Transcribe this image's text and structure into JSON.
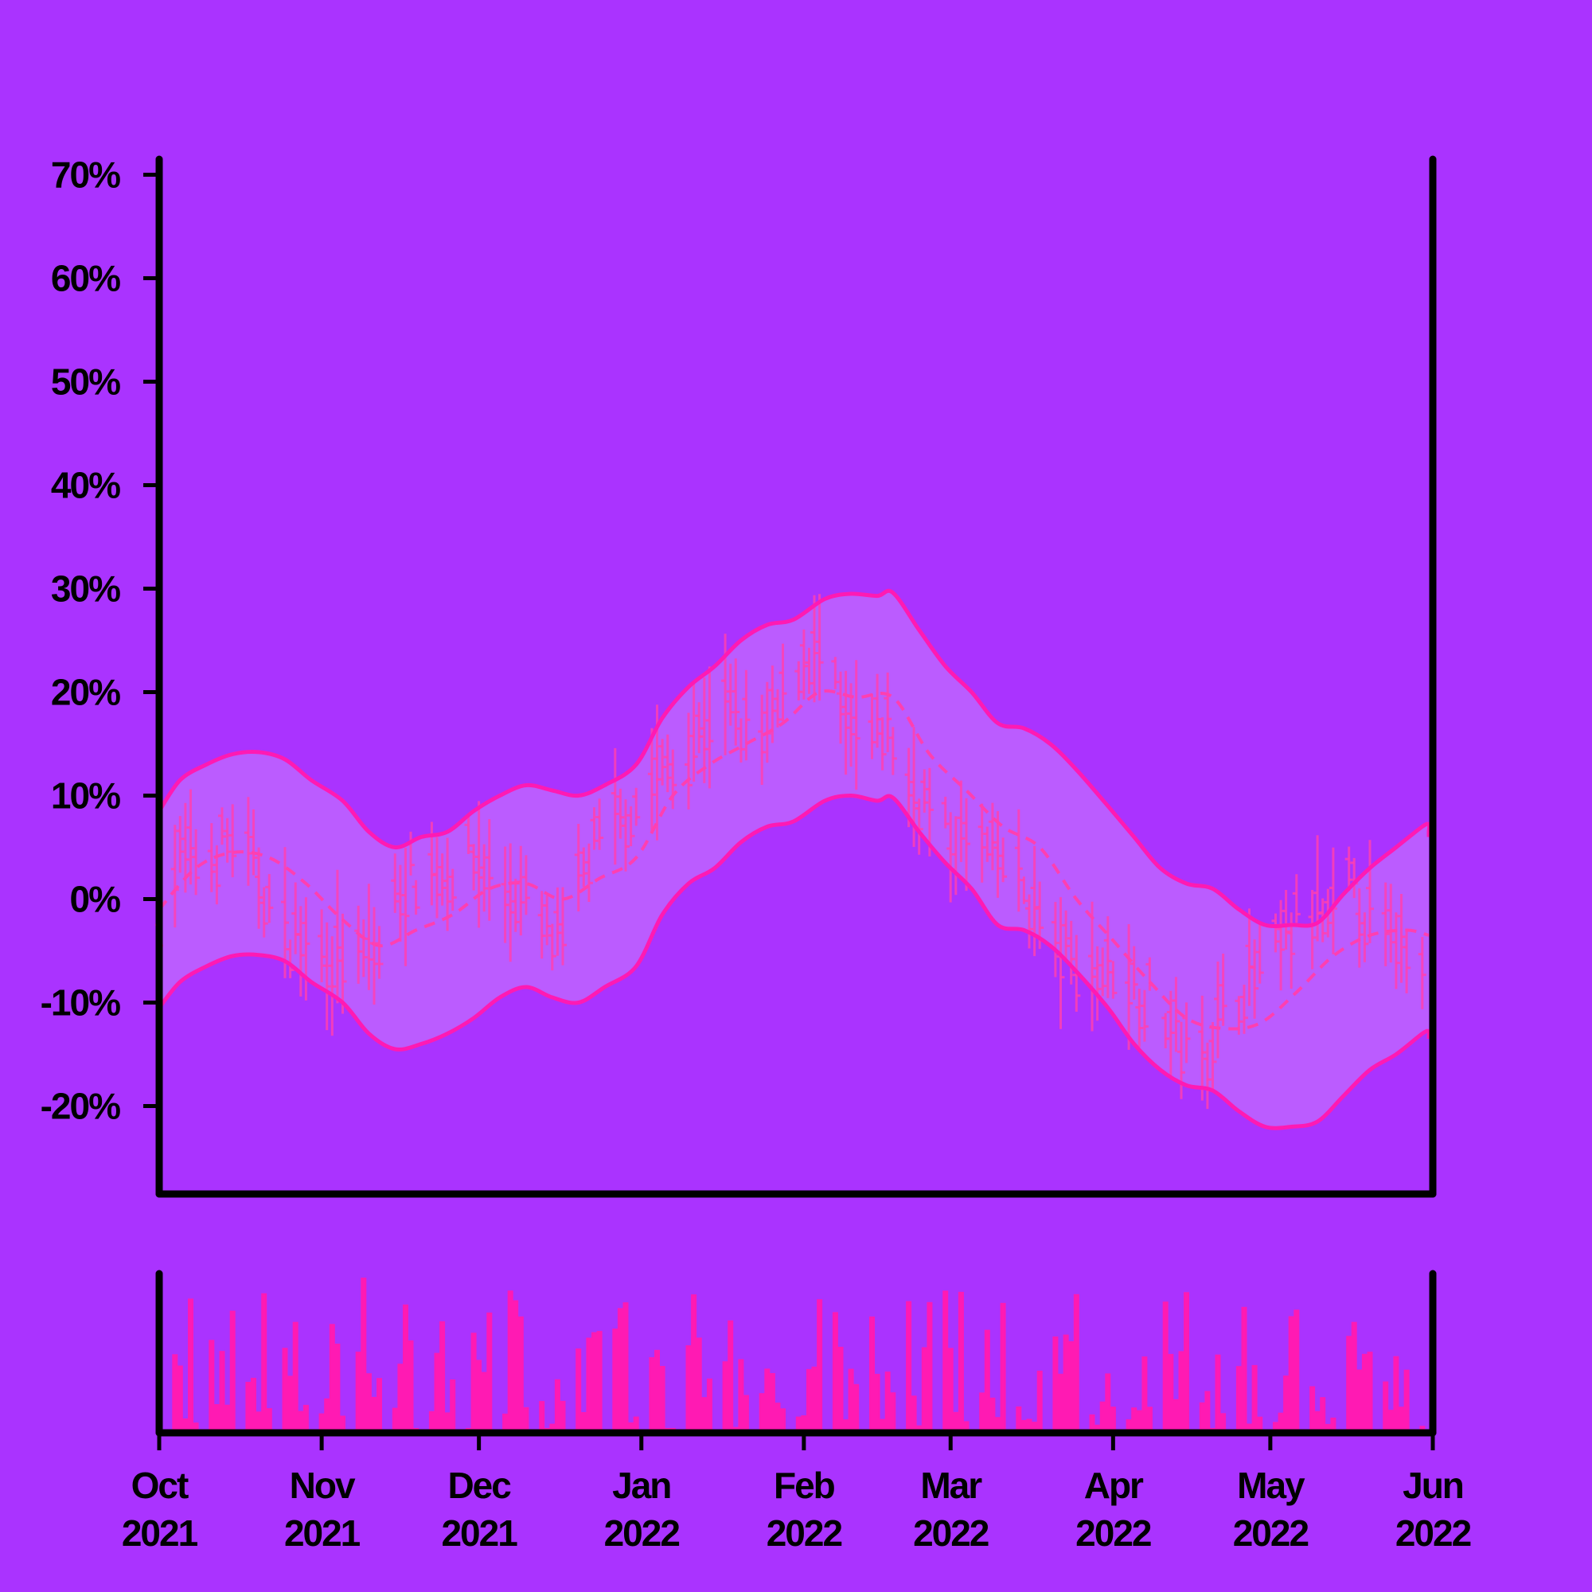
{
  "colors": {
    "background": "#aa33ff",
    "band_fill": "#bb5cff",
    "accent": "#ff1ab3",
    "series": "#ff3fb0",
    "axis": "#000000"
  },
  "chart_data": {
    "type": "line",
    "subtype": "ohlc-with-bollinger-band-and-volume",
    "title": "",
    "x_range": [
      "2021-10-01",
      "2022-06-01"
    ],
    "x_ticks": [
      {
        "date": "2021-10-01",
        "month": "Oct",
        "year": "2021"
      },
      {
        "date": "2021-11-01",
        "month": "Nov",
        "year": "2021"
      },
      {
        "date": "2021-12-01",
        "month": "Dec",
        "year": "2021"
      },
      {
        "date": "2022-01-01",
        "month": "Jan",
        "year": "2022"
      },
      {
        "date": "2022-02-01",
        "month": "Feb",
        "year": "2022"
      },
      {
        "date": "2022-03-01",
        "month": "Mar",
        "year": "2022"
      },
      {
        "date": "2022-04-01",
        "month": "Apr",
        "year": "2022"
      },
      {
        "date": "2022-05-01",
        "month": "May",
        "year": "2022"
      },
      {
        "date": "2022-06-01",
        "month": "Jun",
        "year": "2022"
      }
    ],
    "y_ticks": [
      {
        "value": 70,
        "label": "70%"
      },
      {
        "value": 60,
        "label": "60%"
      },
      {
        "value": 50,
        "label": "50%"
      },
      {
        "value": 40,
        "label": "40%"
      },
      {
        "value": 30,
        "label": "30%"
      },
      {
        "value": 20,
        "label": "20%"
      },
      {
        "value": 10,
        "label": "10%"
      },
      {
        "value": 0,
        "label": "0%"
      },
      {
        "value": -10,
        "label": "-10%"
      },
      {
        "value": -20,
        "label": "-20%"
      }
    ],
    "ylim": [
      -28.5,
      71.5
    ],
    "moving_average": [
      [
        "2021-10-01",
        -1
      ],
      [
        "2021-10-08",
        3
      ],
      [
        "2021-10-15",
        4.5
      ],
      [
        "2021-10-22",
        4
      ],
      [
        "2021-10-29",
        1.5
      ],
      [
        "2021-11-05",
        -2
      ],
      [
        "2021-11-12",
        -4.5
      ],
      [
        "2021-11-19",
        -3
      ],
      [
        "2021-11-26",
        -1.5
      ],
      [
        "2021-12-03",
        1
      ],
      [
        "2021-12-10",
        1.5
      ],
      [
        "2021-12-17",
        0
      ],
      [
        "2021-12-24",
        2
      ],
      [
        "2021-12-31",
        4
      ],
      [
        "2022-01-07",
        10
      ],
      [
        "2022-01-14",
        13
      ],
      [
        "2022-01-21",
        15
      ],
      [
        "2022-01-28",
        17
      ],
      [
        "2022-02-04",
        20
      ],
      [
        "2022-02-11",
        19.5
      ],
      [
        "2022-02-18",
        19.5
      ],
      [
        "2022-02-25",
        14
      ],
      [
        "2022-03-04",
        10.5
      ],
      [
        "2022-03-11",
        7
      ],
      [
        "2022-03-18",
        5
      ],
      [
        "2022-03-25",
        0
      ],
      [
        "2022-04-01",
        -4
      ],
      [
        "2022-04-08",
        -8
      ],
      [
        "2022-04-15",
        -11.5
      ],
      [
        "2022-04-22",
        -12.5
      ],
      [
        "2022-04-29",
        -12
      ],
      [
        "2022-05-06",
        -9
      ],
      [
        "2022-05-13",
        -5.5
      ],
      [
        "2022-05-20",
        -3.5
      ],
      [
        "2022-05-27",
        -3
      ],
      [
        "2022-06-01",
        -3.5
      ]
    ],
    "band_upper": [
      [
        "2021-10-01",
        8.5
      ],
      [
        "2021-10-05",
        11.5
      ],
      [
        "2021-10-10",
        13
      ],
      [
        "2021-10-15",
        14
      ],
      [
        "2021-10-20",
        14.2
      ],
      [
        "2021-10-25",
        13.5
      ],
      [
        "2021-10-30",
        11.5
      ],
      [
        "2021-11-05",
        9.5
      ],
      [
        "2021-11-10",
        6.5
      ],
      [
        "2021-11-15",
        5
      ],
      [
        "2021-11-20",
        6
      ],
      [
        "2021-11-25",
        6.5
      ],
      [
        "2021-11-30",
        8.5
      ],
      [
        "2021-12-05",
        10
      ],
      [
        "2021-12-10",
        11
      ],
      [
        "2021-12-15",
        10.5
      ],
      [
        "2021-12-20",
        10
      ],
      [
        "2021-12-25",
        11
      ],
      [
        "2021-12-31",
        13
      ],
      [
        "2022-01-05",
        17.5
      ],
      [
        "2022-01-10",
        20.5
      ],
      [
        "2022-01-15",
        22.5
      ],
      [
        "2022-01-20",
        25
      ],
      [
        "2022-01-25",
        26.5
      ],
      [
        "2022-01-30",
        27
      ],
      [
        "2022-02-05",
        29
      ],
      [
        "2022-02-10",
        29.5
      ],
      [
        "2022-02-15",
        29.3
      ],
      [
        "2022-02-18",
        29.6
      ],
      [
        "2022-02-23",
        26
      ],
      [
        "2022-02-28",
        22.5
      ],
      [
        "2022-03-05",
        20
      ],
      [
        "2022-03-10",
        17
      ],
      [
        "2022-03-15",
        16.5
      ],
      [
        "2022-03-20",
        15
      ],
      [
        "2022-03-25",
        12.5
      ],
      [
        "2022-03-31",
        9
      ],
      [
        "2022-04-05",
        6
      ],
      [
        "2022-04-10",
        3
      ],
      [
        "2022-04-15",
        1.5
      ],
      [
        "2022-04-20",
        1
      ],
      [
        "2022-04-25",
        -1
      ],
      [
        "2022-04-30",
        -2.5
      ],
      [
        "2022-05-05",
        -2.5
      ],
      [
        "2022-05-10",
        -2.3
      ],
      [
        "2022-05-15",
        0.5
      ],
      [
        "2022-05-20",
        3
      ],
      [
        "2022-05-25",
        5
      ],
      [
        "2022-05-30",
        7
      ],
      [
        "2022-06-04",
        7.2
      ],
      [
        "2022-06-09",
        6.5
      ],
      [
        "2022-06-12",
        6
      ]
    ],
    "band_lower": [
      [
        "2021-10-01",
        -10.5
      ],
      [
        "2021-10-05",
        -8
      ],
      [
        "2021-10-10",
        -6.5
      ],
      [
        "2021-10-15",
        -5.5
      ],
      [
        "2021-10-20",
        -5.4
      ],
      [
        "2021-10-25",
        -6
      ],
      [
        "2021-10-30",
        -8
      ],
      [
        "2021-11-05",
        -10
      ],
      [
        "2021-11-10",
        -13
      ],
      [
        "2021-11-15",
        -14.5
      ],
      [
        "2021-11-20",
        -14
      ],
      [
        "2021-11-25",
        -13
      ],
      [
        "2021-11-30",
        -11.5
      ],
      [
        "2021-12-05",
        -9.5
      ],
      [
        "2021-12-10",
        -8.5
      ],
      [
        "2021-12-15",
        -9.5
      ],
      [
        "2021-12-20",
        -10
      ],
      [
        "2021-12-25",
        -8.5
      ],
      [
        "2021-12-31",
        -6.5
      ],
      [
        "2022-01-05",
        -1.5
      ],
      [
        "2022-01-10",
        1.5
      ],
      [
        "2022-01-15",
        3
      ],
      [
        "2022-01-20",
        5.5
      ],
      [
        "2022-01-25",
        7
      ],
      [
        "2022-01-30",
        7.5
      ],
      [
        "2022-02-05",
        9.5
      ],
      [
        "2022-02-10",
        10
      ],
      [
        "2022-02-15",
        9.5
      ],
      [
        "2022-02-18",
        9.8
      ],
      [
        "2022-02-23",
        6.5
      ],
      [
        "2022-02-28",
        3.5
      ],
      [
        "2022-03-05",
        1
      ],
      [
        "2022-03-10",
        -2.5
      ],
      [
        "2022-03-15",
        -3
      ],
      [
        "2022-03-20",
        -4.5
      ],
      [
        "2022-03-25",
        -7
      ],
      [
        "2022-03-31",
        -10.5
      ],
      [
        "2022-04-05",
        -14
      ],
      [
        "2022-04-10",
        -16.5
      ],
      [
        "2022-04-15",
        -18
      ],
      [
        "2022-04-20",
        -18.5
      ],
      [
        "2022-04-25",
        -20.5
      ],
      [
        "2022-04-30",
        -22
      ],
      [
        "2022-05-05",
        -22
      ],
      [
        "2022-05-10",
        -21.5
      ],
      [
        "2022-05-15",
        -19
      ],
      [
        "2022-05-20",
        -16.5
      ],
      [
        "2022-05-25",
        -15
      ],
      [
        "2022-05-30",
        -13
      ],
      [
        "2022-06-04",
        -12.8
      ],
      [
        "2022-06-09",
        -13.3
      ],
      [
        "2022-06-12",
        -13.5
      ]
    ],
    "price_path": [
      [
        "2021-10-01",
        -1
      ],
      [
        "2021-10-05",
        4
      ],
      [
        "2021-10-10",
        3.5
      ],
      [
        "2021-10-15",
        6
      ],
      [
        "2021-10-20",
        2
      ],
      [
        "2021-10-24",
        -3
      ],
      [
        "2021-10-29",
        -4
      ],
      [
        "2021-11-03",
        -5.5
      ],
      [
        "2021-11-08",
        -6
      ],
      [
        "2021-11-12",
        -5
      ],
      [
        "2021-11-16",
        1
      ],
      [
        "2021-11-20",
        3
      ],
      [
        "2021-11-25",
        2.5
      ],
      [
        "2021-11-30",
        4
      ],
      [
        "2021-12-05",
        1
      ],
      [
        "2021-12-09",
        0
      ],
      [
        "2021-12-13",
        -3
      ],
      [
        "2021-12-17",
        -5
      ],
      [
        "2021-12-21",
        3
      ],
      [
        "2021-12-26",
        7
      ],
      [
        "2021-12-31",
        9
      ],
      [
        "2022-01-04",
        12
      ],
      [
        "2022-01-08",
        13
      ],
      [
        "2022-01-12",
        16
      ],
      [
        "2022-01-16",
        19
      ],
      [
        "2022-01-20",
        17
      ],
      [
        "2022-01-24",
        15
      ],
      [
        "2022-01-28",
        19
      ],
      [
        "2022-02-01",
        24
      ],
      [
        "2022-02-05",
        23
      ],
      [
        "2022-02-09",
        16
      ],
      [
        "2022-02-13",
        15
      ],
      [
        "2022-02-17",
        17
      ],
      [
        "2022-02-21",
        11
      ],
      [
        "2022-02-25",
        9
      ],
      [
        "2022-03-01",
        5
      ],
      [
        "2022-03-05",
        6
      ],
      [
        "2022-03-09",
        4
      ],
      [
        "2022-03-13",
        3
      ],
      [
        "2022-03-17",
        -1
      ],
      [
        "2022-03-21",
        -5
      ],
      [
        "2022-03-25",
        -6
      ],
      [
        "2022-03-29",
        -7
      ],
      [
        "2022-04-02",
        -6
      ],
      [
        "2022-04-06",
        -9
      ],
      [
        "2022-04-10",
        -10
      ],
      [
        "2022-04-14",
        -14
      ],
      [
        "2022-04-18",
        -15
      ],
      [
        "2022-04-22",
        -11
      ],
      [
        "2022-04-26",
        -8
      ],
      [
        "2022-04-30",
        -7
      ],
      [
        "2022-05-04",
        -4
      ],
      [
        "2022-05-08",
        -1
      ],
      [
        "2022-05-12",
        -3
      ],
      [
        "2022-05-16",
        1
      ],
      [
        "2022-05-20",
        -2
      ],
      [
        "2022-05-24",
        -4
      ],
      [
        "2022-05-28",
        -3
      ],
      [
        "2022-06-01",
        -5
      ],
      [
        "2022-06-05",
        -3
      ],
      [
        "2022-06-09",
        -5
      ],
      [
        "2022-06-12",
        -4
      ]
    ],
    "volume_note": "Volume bars shown beneath price panel (relative scale, no axis labels)"
  }
}
